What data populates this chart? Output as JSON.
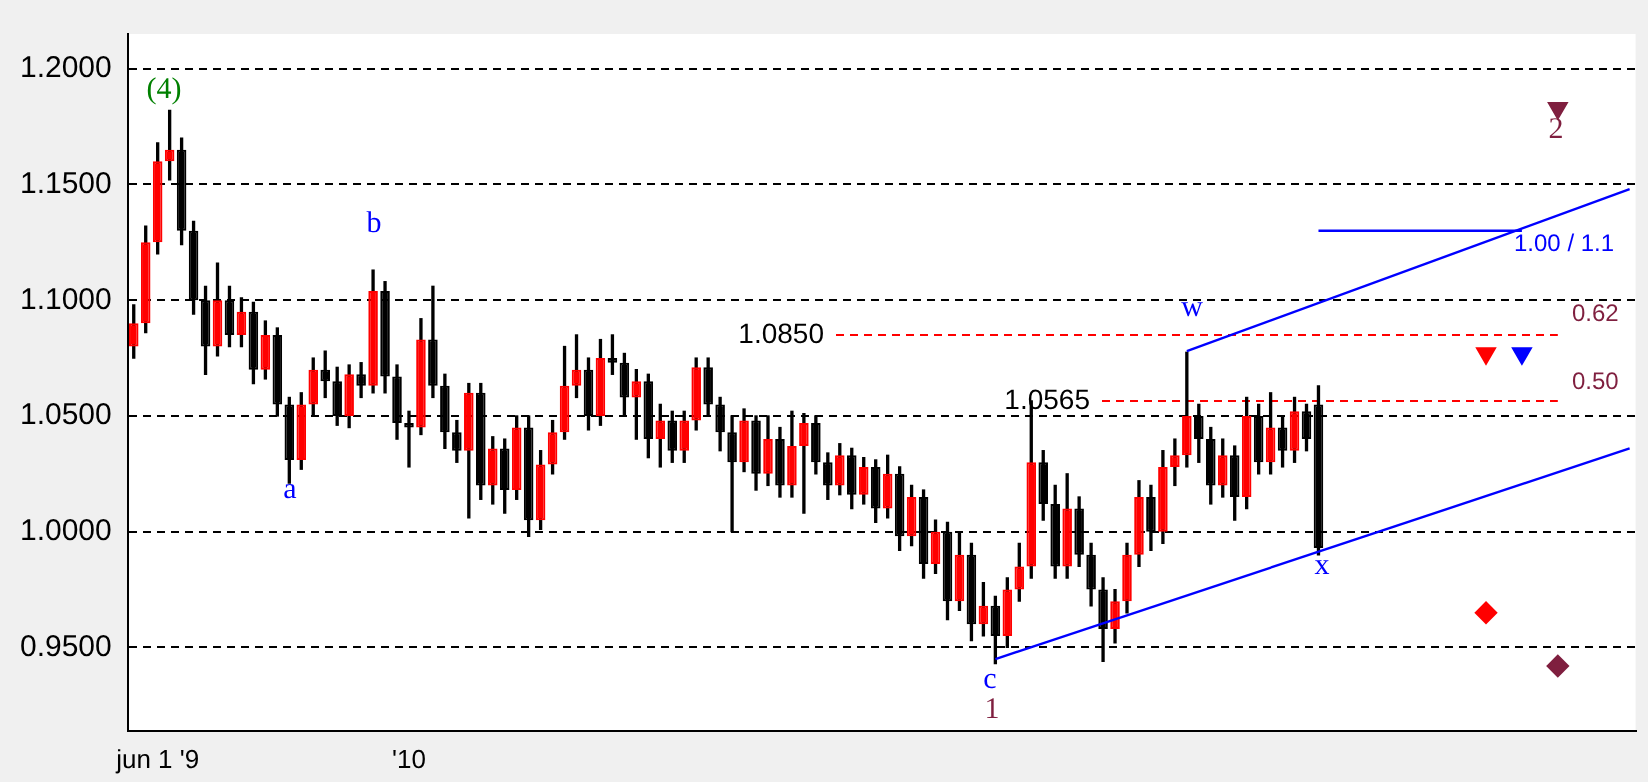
{
  "chart_data": {
    "type": "candlestick",
    "categories": [
      null,
      null,
      "jun 1 '9",
      null,
      null,
      null,
      null,
      null,
      null,
      null,
      null,
      null,
      null,
      null,
      null,
      null,
      null,
      null,
      null,
      null,
      null,
      null,
      null,
      "'10",
      null,
      null,
      null,
      null,
      null,
      null,
      null,
      null,
      null,
      null,
      null,
      null,
      null,
      null,
      null,
      null,
      null,
      null,
      null,
      null,
      null,
      null,
      null,
      null,
      null,
      null,
      null,
      null,
      null,
      null,
      null,
      null,
      null,
      null,
      null,
      null,
      null,
      null,
      null,
      null,
      null,
      null,
      null,
      null,
      null,
      null,
      null,
      null,
      null,
      null,
      null,
      null,
      null,
      null,
      null,
      null,
      null,
      null,
      null,
      null,
      null,
      null,
      null,
      null,
      null,
      null,
      null,
      null,
      null,
      null,
      null,
      null,
      null,
      null,
      null,
      null,
      null,
      null,
      null,
      null,
      null,
      null,
      null,
      null,
      null,
      null,
      null,
      null,
      null,
      null,
      null,
      null,
      null,
      null,
      null,
      null,
      null,
      null,
      null,
      null,
      null,
      null
    ],
    "ohlc": [
      [
        1.08,
        1.098,
        1.075,
        1.09
      ],
      [
        1.09,
        1.132,
        1.086,
        1.125
      ],
      [
        1.125,
        1.168,
        1.12,
        1.16
      ],
      [
        1.16,
        1.182,
        1.152,
        1.165
      ],
      [
        1.165,
        1.17,
        1.124,
        1.13
      ],
      [
        1.13,
        1.134,
        1.094,
        1.1
      ],
      [
        1.1,
        1.106,
        1.068,
        1.08
      ],
      [
        1.08,
        1.116,
        1.076,
        1.1
      ],
      [
        1.1,
        1.106,
        1.08,
        1.085
      ],
      [
        1.085,
        1.101,
        1.08,
        1.095
      ],
      [
        1.095,
        1.099,
        1.064,
        1.07
      ],
      [
        1.07,
        1.091,
        1.066,
        1.085
      ],
      [
        1.085,
        1.088,
        1.05,
        1.055
      ],
      [
        1.055,
        1.058,
        1.021,
        1.031
      ],
      [
        1.031,
        1.06,
        1.027,
        1.055
      ],
      [
        1.055,
        1.075,
        1.05,
        1.07
      ],
      [
        1.07,
        1.078,
        1.058,
        1.065
      ],
      [
        1.065,
        1.071,
        1.046,
        1.05
      ],
      [
        1.05,
        1.072,
        1.045,
        1.068
      ],
      [
        1.068,
        1.073,
        1.058,
        1.063
      ],
      [
        1.063,
        1.113,
        1.06,
        1.104
      ],
      [
        1.104,
        1.108,
        1.06,
        1.067
      ],
      [
        1.067,
        1.072,
        1.04,
        1.047
      ],
      [
        1.047,
        1.052,
        1.028,
        1.045
      ],
      [
        1.045,
        1.092,
        1.042,
        1.083
      ],
      [
        1.083,
        1.106,
        1.058,
        1.063
      ],
      [
        1.063,
        1.068,
        1.036,
        1.043
      ],
      [
        1.043,
        1.048,
        1.03,
        1.035
      ],
      [
        1.035,
        1.064,
        1.006,
        1.06
      ],
      [
        1.06,
        1.064,
        1.014,
        1.02
      ],
      [
        1.02,
        1.041,
        1.012,
        1.036
      ],
      [
        1.036,
        1.04,
        1.008,
        1.018
      ],
      [
        1.018,
        1.05,
        1.014,
        1.045
      ],
      [
        1.045,
        1.05,
        0.998,
        1.005
      ],
      [
        1.005,
        1.035,
        1.001,
        1.029
      ],
      [
        1.029,
        1.048,
        1.025,
        1.043
      ],
      [
        1.043,
        1.08,
        1.04,
        1.063
      ],
      [
        1.063,
        1.085,
        1.058,
        1.07
      ],
      [
        1.07,
        1.075,
        1.044,
        1.05
      ],
      [
        1.05,
        1.083,
        1.046,
        1.075
      ],
      [
        1.075,
        1.085,
        1.068,
        1.073
      ],
      [
        1.073,
        1.077,
        1.05,
        1.058
      ],
      [
        1.058,
        1.07,
        1.04,
        1.065
      ],
      [
        1.065,
        1.068,
        1.032,
        1.04
      ],
      [
        1.04,
        1.055,
        1.028,
        1.048
      ],
      [
        1.048,
        1.052,
        1.03,
        1.035
      ],
      [
        1.035,
        1.052,
        1.03,
        1.048
      ],
      [
        1.048,
        1.075,
        1.044,
        1.071
      ],
      [
        1.071,
        1.075,
        1.05,
        1.055
      ],
      [
        1.055,
        1.058,
        1.035,
        1.043
      ],
      [
        1.043,
        1.05,
        1.0,
        1.03
      ],
      [
        1.03,
        1.053,
        1.026,
        1.048
      ],
      [
        1.048,
        1.05,
        1.018,
        1.025
      ],
      [
        1.025,
        1.05,
        1.02,
        1.04
      ],
      [
        1.04,
        1.045,
        1.015,
        1.02
      ],
      [
        1.02,
        1.052,
        1.015,
        1.037
      ],
      [
        1.037,
        1.051,
        1.008,
        1.047
      ],
      [
        1.047,
        1.05,
        1.025,
        1.03
      ],
      [
        1.03,
        1.034,
        1.014,
        1.02
      ],
      [
        1.02,
        1.038,
        1.016,
        1.033
      ],
      [
        1.033,
        1.036,
        1.01,
        1.016
      ],
      [
        1.016,
        1.032,
        1.012,
        1.028
      ],
      [
        1.028,
        1.031,
        1.004,
        1.01
      ],
      [
        1.01,
        1.033,
        1.006,
        1.025
      ],
      [
        1.025,
        1.028,
        0.992,
        0.998
      ],
      [
        0.998,
        1.02,
        0.994,
        1.015
      ],
      [
        1.015,
        1.018,
        0.98,
        0.986
      ],
      [
        0.986,
        1.005,
        0.982,
        1.0
      ],
      [
        1.0,
        1.004,
        0.962,
        0.97
      ],
      [
        0.97,
        1.0,
        0.966,
        0.99
      ],
      [
        0.99,
        0.995,
        0.953,
        0.96
      ],
      [
        0.96,
        0.978,
        0.955,
        0.968
      ],
      [
        0.968,
        0.972,
        0.943,
        0.955
      ],
      [
        0.955,
        0.98,
        0.95,
        0.975
      ],
      [
        0.975,
        0.995,
        0.97,
        0.985
      ],
      [
        0.985,
        1.0565,
        0.98,
        1.03
      ],
      [
        1.03,
        1.035,
        1.005,
        1.012
      ],
      [
        1.012,
        1.02,
        0.98,
        0.985
      ],
      [
        0.985,
        1.025,
        0.98,
        1.01
      ],
      [
        1.01,
        1.015,
        0.985,
        0.99
      ],
      [
        0.99,
        0.995,
        0.968,
        0.975
      ],
      [
        0.975,
        0.98,
        0.944,
        0.958
      ],
      [
        0.958,
        0.975,
        0.952,
        0.97
      ],
      [
        0.97,
        0.995,
        0.965,
        0.99
      ],
      [
        0.99,
        1.022,
        0.985,
        1.015
      ],
      [
        1.015,
        1.02,
        0.992,
        1.0
      ],
      [
        1.0,
        1.035,
        0.995,
        1.028
      ],
      [
        1.028,
        1.04,
        1.02,
        1.033
      ],
      [
        1.033,
        1.0775,
        1.028,
        1.05
      ],
      [
        1.05,
        1.055,
        1.03,
        1.04
      ],
      [
        1.04,
        1.045,
        1.012,
        1.02
      ],
      [
        1.02,
        1.04,
        1.015,
        1.033
      ],
      [
        1.033,
        1.037,
        1.005,
        1.015
      ],
      [
        1.015,
        1.058,
        1.01,
        1.05
      ],
      [
        1.05,
        1.055,
        1.025,
        1.03
      ],
      [
        1.03,
        1.06,
        1.025,
        1.045
      ],
      [
        1.045,
        1.05,
        1.028,
        1.035
      ],
      [
        1.035,
        1.058,
        1.03,
        1.052
      ],
      [
        1.052,
        1.055,
        1.035,
        1.04
      ],
      [
        1.055,
        1.063,
        0.99,
        0.993
      ],
      null,
      null,
      null,
      null,
      null,
      null,
      null,
      null,
      null,
      null,
      null,
      null,
      null,
      null,
      null,
      null,
      null,
      null,
      null,
      null,
      null,
      null,
      null,
      null,
      null,
      null
    ],
    "series": [
      {
        "type": "line",
        "color": "#0000ff",
        "values": [
          null,
          null,
          null,
          null,
          null,
          null,
          null,
          null,
          null,
          null,
          null,
          null,
          null,
          null,
          null,
          null,
          null,
          null,
          null,
          null,
          null,
          null,
          null,
          null,
          null,
          null,
          null,
          null,
          null,
          null,
          null,
          null,
          null,
          null,
          null,
          null,
          null,
          null,
          null,
          null,
          null,
          null,
          null,
          null,
          null,
          null,
          null,
          null,
          null,
          null,
          null,
          null,
          null,
          null,
          null,
          null,
          null,
          null,
          null,
          null,
          null,
          null,
          null,
          null,
          null,
          null,
          null,
          null,
          null,
          null,
          null,
          null,
          null,
          null,
          null,
          null,
          null,
          null,
          null,
          null,
          null,
          null,
          null,
          null,
          null,
          null,
          null,
          null,
          1.078,
          null,
          null,
          null,
          null,
          null,
          null,
          null,
          null,
          null,
          null,
          null,
          null,
          null,
          null,
          null,
          null,
          null,
          null,
          null,
          null,
          null,
          null,
          null,
          null,
          null,
          null,
          null,
          null,
          null,
          null,
          null,
          null,
          null,
          null,
          null,
          null,
          1.148
        ]
      },
      {
        "type": "line",
        "color": "#0000ff",
        "values": [
          null,
          null,
          null,
          null,
          null,
          null,
          null,
          null,
          null,
          null,
          null,
          null,
          null,
          null,
          null,
          null,
          null,
          null,
          null,
          null,
          null,
          null,
          null,
          null,
          null,
          null,
          null,
          null,
          null,
          null,
          null,
          null,
          null,
          null,
          null,
          null,
          null,
          null,
          null,
          null,
          null,
          null,
          null,
          null,
          null,
          null,
          null,
          null,
          null,
          null,
          null,
          null,
          null,
          null,
          null,
          null,
          null,
          null,
          null,
          null,
          null,
          null,
          null,
          null,
          null,
          null,
          null,
          null,
          null,
          null,
          null,
          null,
          0.945,
          null,
          null,
          null,
          null,
          null,
          null,
          null,
          null,
          null,
          null,
          null,
          null,
          null,
          null,
          null,
          null,
          null,
          null,
          null,
          null,
          null,
          null,
          null,
          null,
          null,
          null,
          null,
          null,
          null,
          null,
          null,
          null,
          null,
          null,
          null,
          null,
          null,
          null,
          null,
          null,
          null,
          null,
          null,
          null,
          null,
          null,
          null,
          null,
          null,
          null,
          null,
          null,
          1.036
        ]
      },
      {
        "type": "line",
        "color": "#0000ff",
        "values": [
          null,
          null,
          null,
          null,
          null,
          null,
          null,
          null,
          null,
          null,
          null,
          null,
          null,
          null,
          null,
          null,
          null,
          null,
          null,
          null,
          null,
          null,
          null,
          null,
          null,
          null,
          null,
          null,
          null,
          null,
          null,
          null,
          null,
          null,
          null,
          null,
          null,
          null,
          null,
          null,
          null,
          null,
          null,
          null,
          null,
          null,
          null,
          null,
          null,
          null,
          null,
          null,
          null,
          null,
          null,
          null,
          null,
          null,
          null,
          null,
          null,
          null,
          null,
          null,
          null,
          null,
          null,
          null,
          null,
          null,
          null,
          null,
          null,
          null,
          null,
          null,
          null,
          null,
          null,
          null,
          null,
          null,
          null,
          null,
          null,
          null,
          null,
          null,
          null,
          null,
          null,
          null,
          null,
          null,
          null,
          null,
          null,
          null,
          null,
          1.13,
          null,
          null,
          null,
          null,
          null,
          null,
          null,
          null,
          null,
          null,
          null,
          null,
          null,
          null,
          null,
          null,
          1.13,
          null,
          null,
          null,
          null,
          null,
          null,
          null,
          null,
          null
        ]
      },
      {
        "type": "scatter",
        "color": "#ff0000",
        "marker": "triangle",
        "values": [
          null,
          null,
          null,
          null,
          null,
          null,
          null,
          null,
          null,
          null,
          null,
          null,
          null,
          null,
          null,
          null,
          null,
          null,
          null,
          null,
          null,
          null,
          null,
          null,
          null,
          null,
          null,
          null,
          null,
          null,
          null,
          null,
          null,
          null,
          null,
          null,
          null,
          null,
          null,
          null,
          null,
          null,
          null,
          null,
          null,
          null,
          null,
          null,
          null,
          null,
          null,
          null,
          null,
          null,
          null,
          null,
          null,
          null,
          null,
          null,
          null,
          null,
          null,
          null,
          null,
          null,
          null,
          null,
          null,
          null,
          null,
          null,
          null,
          null,
          null,
          null,
          null,
          null,
          null,
          null,
          null,
          null,
          null,
          null,
          null,
          null,
          null,
          null,
          null,
          null,
          null,
          null,
          null,
          null,
          null,
          null,
          null,
          null,
          null,
          null,
          null,
          null,
          null,
          null,
          null,
          null,
          null,
          null,
          null,
          null,
          null,
          null,
          null,
          1.077,
          null,
          null,
          null,
          null,
          null,
          null,
          null,
          null,
          null,
          null,
          null,
          null
        ]
      },
      {
        "type": "scatter",
        "color": "#0000ff",
        "marker": "triangle",
        "values": [
          null,
          null,
          null,
          null,
          null,
          null,
          null,
          null,
          null,
          null,
          null,
          null,
          null,
          null,
          null,
          null,
          null,
          null,
          null,
          null,
          null,
          null,
          null,
          null,
          null,
          null,
          null,
          null,
          null,
          null,
          null,
          null,
          null,
          null,
          null,
          null,
          null,
          null,
          null,
          null,
          null,
          null,
          null,
          null,
          null,
          null,
          null,
          null,
          null,
          null,
          null,
          null,
          null,
          null,
          null,
          null,
          null,
          null,
          null,
          null,
          null,
          null,
          null,
          null,
          null,
          null,
          null,
          null,
          null,
          null,
          null,
          null,
          null,
          null,
          null,
          null,
          null,
          null,
          null,
          null,
          null,
          null,
          null,
          null,
          null,
          null,
          null,
          null,
          null,
          null,
          null,
          null,
          null,
          null,
          null,
          null,
          null,
          null,
          null,
          null,
          null,
          null,
          null,
          null,
          null,
          null,
          null,
          null,
          null,
          null,
          null,
          null,
          null,
          null,
          null,
          null,
          1.077,
          null,
          null,
          null,
          null,
          null,
          null,
          null,
          null,
          null
        ]
      },
      {
        "type": "scatter",
        "color": "#7f1f3f",
        "marker": "triangle",
        "values": [
          null,
          null,
          null,
          null,
          null,
          null,
          null,
          null,
          null,
          null,
          null,
          null,
          null,
          null,
          null,
          null,
          null,
          null,
          null,
          null,
          null,
          null,
          null,
          null,
          null,
          null,
          null,
          null,
          null,
          null,
          null,
          null,
          null,
          null,
          null,
          null,
          null,
          null,
          null,
          null,
          null,
          null,
          null,
          null,
          null,
          null,
          null,
          null,
          null,
          null,
          null,
          null,
          null,
          null,
          null,
          null,
          null,
          null,
          null,
          null,
          null,
          null,
          null,
          null,
          null,
          null,
          null,
          null,
          null,
          null,
          null,
          null,
          null,
          null,
          null,
          null,
          null,
          null,
          null,
          null,
          null,
          null,
          null,
          null,
          null,
          null,
          null,
          null,
          null,
          null,
          null,
          null,
          null,
          null,
          null,
          null,
          null,
          null,
          null,
          null,
          null,
          null,
          null,
          null,
          null,
          null,
          null,
          null,
          null,
          null,
          null,
          null,
          null,
          null,
          null,
          null,
          null,
          null,
          null,
          1.183,
          null,
          null,
          null,
          null,
          null,
          null
        ]
      },
      {
        "type": "scatter",
        "color": "#ff0000",
        "marker": "diamond",
        "values": [
          null,
          null,
          null,
          null,
          null,
          null,
          null,
          null,
          null,
          null,
          null,
          null,
          null,
          null,
          null,
          null,
          null,
          null,
          null,
          null,
          null,
          null,
          null,
          null,
          null,
          null,
          null,
          null,
          null,
          null,
          null,
          null,
          null,
          null,
          null,
          null,
          null,
          null,
          null,
          null,
          null,
          null,
          null,
          null,
          null,
          null,
          null,
          null,
          null,
          null,
          null,
          null,
          null,
          null,
          null,
          null,
          null,
          null,
          null,
          null,
          null,
          null,
          null,
          null,
          null,
          null,
          null,
          null,
          null,
          null,
          null,
          null,
          null,
          null,
          null,
          null,
          null,
          null,
          null,
          null,
          null,
          null,
          null,
          null,
          null,
          null,
          null,
          null,
          null,
          null,
          null,
          null,
          null,
          null,
          null,
          null,
          null,
          null,
          null,
          null,
          null,
          null,
          null,
          null,
          null,
          null,
          null,
          null,
          null,
          null,
          null,
          null,
          null,
          0.965,
          null,
          null,
          null,
          null,
          null,
          null,
          null,
          null,
          null,
          null,
          null,
          null
        ]
      },
      {
        "type": "scatter",
        "color": "#7f1f3f",
        "marker": "diamond",
        "values": [
          null,
          null,
          null,
          null,
          null,
          null,
          null,
          null,
          null,
          null,
          null,
          null,
          null,
          null,
          null,
          null,
          null,
          null,
          null,
          null,
          null,
          null,
          null,
          null,
          null,
          null,
          null,
          null,
          null,
          null,
          null,
          null,
          null,
          null,
          null,
          null,
          null,
          null,
          null,
          null,
          null,
          null,
          null,
          null,
          null,
          null,
          null,
          null,
          null,
          null,
          null,
          null,
          null,
          null,
          null,
          null,
          null,
          null,
          null,
          null,
          null,
          null,
          null,
          null,
          null,
          null,
          null,
          null,
          null,
          null,
          null,
          null,
          null,
          null,
          null,
          null,
          null,
          null,
          null,
          null,
          null,
          null,
          null,
          null,
          null,
          null,
          null,
          null,
          null,
          null,
          null,
          null,
          null,
          null,
          null,
          null,
          null,
          null,
          null,
          null,
          null,
          null,
          null,
          null,
          null,
          null,
          null,
          null,
          null,
          null,
          null,
          null,
          null,
          null,
          null,
          null,
          null,
          null,
          null,
          0.942,
          null,
          null,
          null,
          null,
          null,
          null
        ]
      }
    ],
    "ref_lines": [
      {
        "axis": "y",
        "value": 1.085,
        "label": "1.0850",
        "color": "#ff0000",
        "line_style": "dashed"
      },
      {
        "axis": "y",
        "value": 1.0565,
        "label": "1.0565",
        "color": "#ff0000",
        "line_style": "dashed"
      }
    ],
    "annotations": [
      "(4)",
      "b",
      "a",
      "c",
      "1",
      "w",
      "x",
      "2",
      "1.00 / 1.1",
      "0.62",
      "0.50"
    ],
    "ylim": [
      0.914,
      1.215
    ],
    "yticks": [
      {
        "value": 0.95,
        "label": "0.9500"
      },
      {
        "value": 1.0,
        "label": "1.0000"
      },
      {
        "value": 1.05,
        "label": "1.0500"
      },
      {
        "value": 1.1,
        "label": "1.1000"
      },
      {
        "value": 1.15,
        "label": "1.1500"
      },
      {
        "value": 1.2,
        "label": "1.2000"
      }
    ],
    "grid": "y",
    "legend": false
  }
}
